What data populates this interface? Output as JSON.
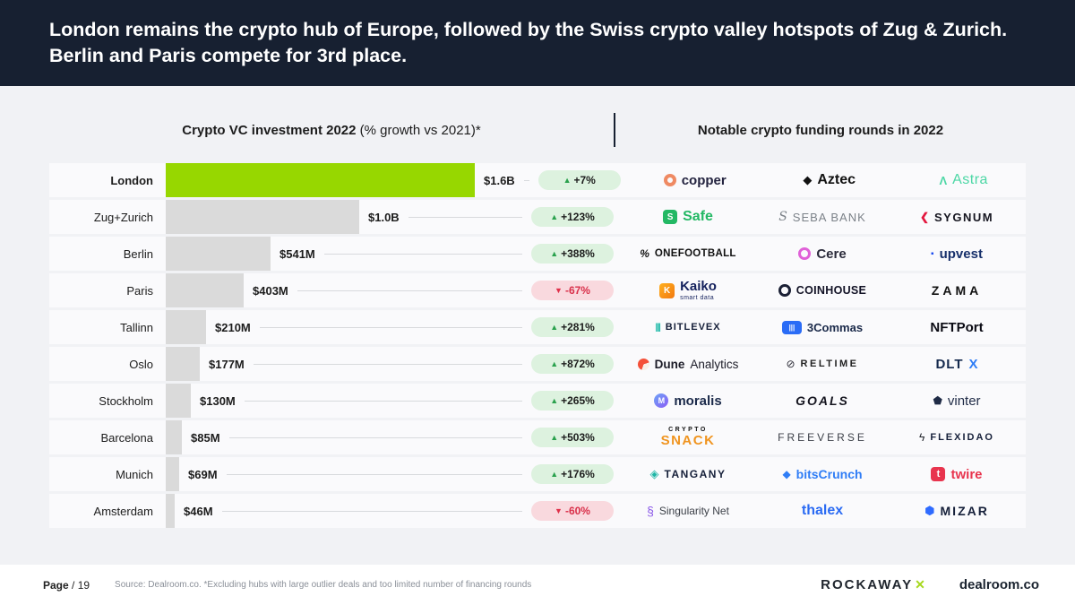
{
  "header": {
    "title": "London remains the crypto hub of Europe, followed by the Swiss crypto valley hotspots of Zug & Zurich. Berlin and Paris compete for 3rd place."
  },
  "section_headers": {
    "left_bold": "Crypto VC investment 2022",
    "left_note": " (% growth vs 2021)*",
    "right": "Notable crypto funding rounds in 2022"
  },
  "chart_data": {
    "type": "bar",
    "orientation": "horizontal",
    "title": "Crypto VC investment 2022 (% growth vs 2021)*",
    "categories": [
      "London",
      "Zug+Zurich",
      "Berlin",
      "Paris",
      "Tallinn",
      "Oslo",
      "Stockholm",
      "Barcelona",
      "Munich",
      "Amsterdam"
    ],
    "values_usd_m": [
      1600,
      1000,
      541,
      403,
      210,
      177,
      130,
      85,
      69,
      46
    ],
    "value_labels": [
      "$1.6B",
      "$1.0B",
      "$541M",
      "$403M",
      "$210M",
      "$177M",
      "$130M",
      "$85M",
      "$69M",
      "$46M"
    ],
    "growth_pct": [
      7,
      123,
      388,
      -67,
      281,
      872,
      265,
      503,
      176,
      -60
    ],
    "growth_labels": [
      "+7%",
      "+123%",
      "+388%",
      "-67%",
      "+281%",
      "+872%",
      "+265%",
      "+503%",
      "+176%",
      "-60%"
    ],
    "xlim_usd_m": [
      0,
      1600
    ],
    "highlight_category": "London",
    "highlight_color": "#97d700",
    "bar_color": "#dadada",
    "legend": "none",
    "grid": false
  },
  "rows": [
    {
      "city": "London",
      "value": "$1.6B",
      "value_musd": 1600,
      "growth": "+7%",
      "direction": "up",
      "highlight": true,
      "companies": [
        {
          "slug": "copper",
          "label": "copper",
          "icon_glyph": "",
          "icon_name": "copper-ring-icon"
        },
        {
          "slug": "aztec",
          "label": "Aztec",
          "icon_glyph": "◆",
          "icon_name": "aztec-diamond-icon"
        },
        {
          "slug": "astra",
          "label": "Astra",
          "icon_glyph": "Λ",
          "icon_name": "astra-lambda-icon"
        }
      ]
    },
    {
      "city": "Zug+Zurich",
      "value": "$1.0B",
      "value_musd": 1000,
      "growth": "+123%",
      "direction": "up",
      "highlight": false,
      "companies": [
        {
          "slug": "safe",
          "label": "Safe",
          "icon_glyph": "S",
          "icon_name": "safe-square-icon"
        },
        {
          "slug": "seba",
          "label": "SEBA BANK",
          "icon_glyph": "S",
          "icon_name": "seba-script-icon"
        },
        {
          "slug": "sygnum",
          "label": "SYGNUM",
          "icon_glyph": "❮",
          "icon_name": "sygnum-chevron-icon"
        }
      ]
    },
    {
      "city": "Berlin",
      "value": "$541M",
      "value_musd": 541,
      "growth": "+388%",
      "direction": "up",
      "highlight": false,
      "companies": [
        {
          "slug": "onefootball",
          "label": "ONEFOOTBALL",
          "icon_glyph": "%",
          "icon_name": "onefootball-mark-icon"
        },
        {
          "slug": "cere",
          "label": "Cere",
          "icon_glyph": "",
          "icon_name": "cere-ring-icon"
        },
        {
          "slug": "upvest",
          "label": "upvest",
          "icon_glyph": "▪",
          "icon_name": "upvest-square-icon"
        }
      ]
    },
    {
      "city": "Paris",
      "value": "$403M",
      "value_musd": 403,
      "growth": "-67%",
      "direction": "down",
      "highlight": false,
      "companies": [
        {
          "slug": "kaiko",
          "label": "Kaiko",
          "sub": "smart data",
          "icon_glyph": "K",
          "icon_name": "kaiko-tile-icon"
        },
        {
          "slug": "coinhouse",
          "label": "COINHOUSE",
          "icon_glyph": "",
          "icon_name": "coinhouse-ring-icon"
        },
        {
          "slug": "zama",
          "label": "ZAMA"
        }
      ]
    },
    {
      "city": "Tallinn",
      "value": "$210M",
      "value_musd": 210,
      "growth": "+281%",
      "direction": "up",
      "highlight": false,
      "companies": [
        {
          "slug": "bitlevex",
          "label": "BITLEVEX",
          "icon_glyph": "|||",
          "icon_name": "bitlevex-bars-icon"
        },
        {
          "slug": "commas",
          "label": "3Commas",
          "icon_glyph": "|||",
          "icon_name": "3commas-tile-icon"
        },
        {
          "slug": "nftport",
          "label": "NFTPort"
        }
      ]
    },
    {
      "city": "Oslo",
      "value": "$177M",
      "value_musd": 177,
      "growth": "+872%",
      "direction": "up",
      "highlight": false,
      "companies": [
        {
          "slug": "dune",
          "label": "Dune",
          "label2": "Analytics",
          "icon_glyph": "",
          "icon_name": "dune-circle-icon"
        },
        {
          "slug": "reltime",
          "label": "RELTIME",
          "icon_glyph": "⊘",
          "icon_name": "reltime-ring-icon"
        },
        {
          "slug": "dltx",
          "label": "DLT",
          "label2": "X"
        }
      ]
    },
    {
      "city": "Stockholm",
      "value": "$130M",
      "value_musd": 130,
      "growth": "+265%",
      "direction": "up",
      "highlight": false,
      "companies": [
        {
          "slug": "moralis",
          "label": "moralis",
          "icon_glyph": "M",
          "icon_name": "moralis-circle-icon"
        },
        {
          "slug": "goals",
          "label": "GOALS"
        },
        {
          "slug": "vinter",
          "label": "vinter",
          "icon_glyph": "⬟",
          "icon_name": "vinter-gem-icon"
        }
      ]
    },
    {
      "city": "Barcelona",
      "value": "$85M",
      "value_musd": 85,
      "growth": "+503%",
      "direction": "up",
      "highlight": false,
      "companies": [
        {
          "slug": "cryptosnack",
          "label": "SNACK",
          "top": "CRYPTO"
        },
        {
          "slug": "freeverse",
          "label": "FREEVERSE"
        },
        {
          "slug": "flexidao",
          "label": "FLEXIDAO",
          "icon_glyph": "ϟ",
          "icon_name": "flexidao-bolt-icon"
        }
      ]
    },
    {
      "city": "Munich",
      "value": "$69M",
      "value_musd": 69,
      "growth": "+176%",
      "direction": "up",
      "highlight": false,
      "companies": [
        {
          "slug": "tangany",
          "label": "TANGANY",
          "icon_glyph": "◈",
          "icon_name": "tangany-diamond-icon"
        },
        {
          "slug": "bitscrunch",
          "label": "bitsCrunch",
          "icon_glyph": "◆",
          "icon_name": "bitscrunch-shield-icon"
        },
        {
          "slug": "twire",
          "label": "twire",
          "icon_glyph": "t",
          "icon_name": "twire-tile-icon"
        }
      ]
    },
    {
      "city": "Amsterdam",
      "value": "$46M",
      "value_musd": 46,
      "growth": "-60%",
      "direction": "down",
      "highlight": false,
      "companies": [
        {
          "slug": "singularity",
          "label": "Singularity Net",
          "icon_glyph": "§",
          "icon_name": "singularitynet-s-icon"
        },
        {
          "slug": "thalex",
          "label": "thalex"
        },
        {
          "slug": "mizar",
          "label": "MIZAR",
          "icon_glyph": "⬢",
          "icon_name": "mizar-hexagon-icon"
        }
      ]
    }
  ],
  "footer": {
    "page_label": "Page",
    "page_number": "/ 19",
    "source": "Source: Dealroom.co.  *Excluding hubs with large outlier deals and too limited number of financing rounds",
    "brand1": "ROCKAWAY",
    "brand1_mark": "✕",
    "brand2": "dealroom.co"
  },
  "colors": {
    "header_bg": "#172031",
    "highlight_bar": "#97d700",
    "bar": "#dadada",
    "badge_up_bg": "#ddf2df",
    "badge_up_arrow": "#2aa14d",
    "badge_down_bg": "#f9d9de",
    "badge_down_text": "#d9304a"
  }
}
